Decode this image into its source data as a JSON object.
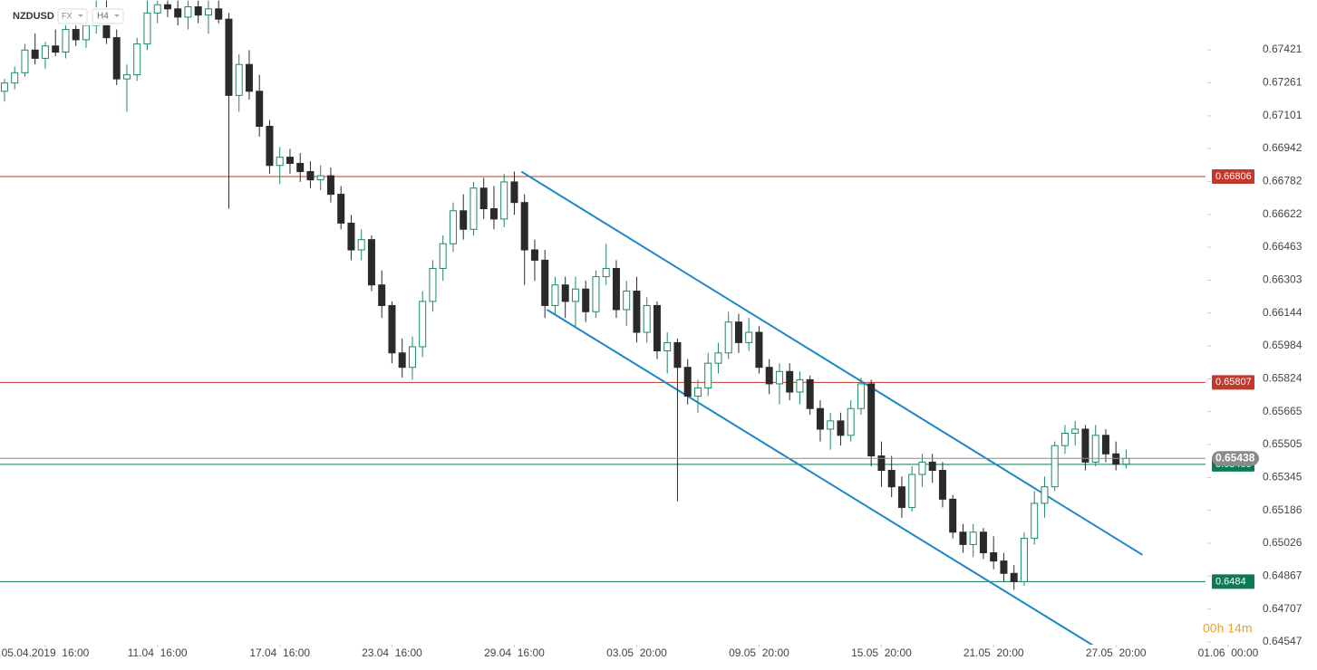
{
  "header": {
    "symbol": "NZDUSD",
    "market": "FX",
    "interval": "H4"
  },
  "countdown": "00h 14m",
  "chart_data": {
    "type": "candlestick",
    "up_color": "#1f8a5c",
    "down_color": "#2a2a2a",
    "xlim": [
      -0.44,
      122.85
    ],
    "xticks": [
      {
        "value": 4,
        "label": "05.04.2019  16:00"
      },
      {
        "value": 15,
        "label": "11.04  16:00"
      },
      {
        "value": 27,
        "label": "17.04  16:00"
      },
      {
        "value": 38,
        "label": "23.04  16:00"
      },
      {
        "value": 50,
        "label": "29.04  16:00"
      },
      {
        "value": 62,
        "label": "03.05  20:00"
      },
      {
        "value": 74,
        "label": "09.05  20:00"
      },
      {
        "value": 86,
        "label": "15.05  20:00"
      },
      {
        "value": 97,
        "label": "21.05  20:00"
      },
      {
        "value": 109,
        "label": "27.05  20:00"
      },
      {
        "value": 120,
        "label": "01.06  00:00"
      }
    ],
    "ylim": [
      0.64534,
      0.67663
    ],
    "yticks": [
      0.67421,
      0.67261,
      0.67101,
      0.66942,
      0.66782,
      0.66622,
      0.66463,
      0.66303,
      0.66144,
      0.65984,
      0.65824,
      0.65665,
      0.65505,
      0.65345,
      0.65186,
      0.65026,
      0.64867,
      0.64707,
      0.64547
    ],
    "levels": [
      {
        "value": 0.66806,
        "color": "#c0392b"
      },
      {
        "value": 0.65807,
        "color": "#c0392b"
      },
      {
        "value": 0.65409,
        "color": "#0e7a55"
      },
      {
        "value": 0.6484,
        "color": "#0e7a55"
      }
    ],
    "last_price": {
      "value": 0.65438,
      "color": "#8a8a8a"
    },
    "trendlines": [
      {
        "x": [
          50.7,
          111.6
        ],
        "y": [
          0.6683,
          0.6497
        ],
        "color": "#1a87c9"
      },
      {
        "x": [
          53.2,
          107.1
        ],
        "y": [
          0.6616,
          0.6452
        ],
        "color": "#1a87c9"
      }
    ],
    "candles": [
      [
        0.6722,
        0.6728,
        0.6717,
        0.6726
      ],
      [
        0.6726,
        0.6734,
        0.6723,
        0.6731
      ],
      [
        0.6731,
        0.6745,
        0.6729,
        0.6742
      ],
      [
        0.6742,
        0.675,
        0.6735,
        0.6738
      ],
      [
        0.6738,
        0.6746,
        0.6733,
        0.6744
      ],
      [
        0.6744,
        0.6752,
        0.6739,
        0.6741
      ],
      [
        0.6741,
        0.6755,
        0.6738,
        0.6752
      ],
      [
        0.6752,
        0.6758,
        0.6744,
        0.6747
      ],
      [
        0.6747,
        0.6756,
        0.6743,
        0.6754
      ],
      [
        0.6754,
        0.6766,
        0.675,
        0.6762
      ],
      [
        0.6762,
        0.6766,
        0.6745,
        0.6748
      ],
      [
        0.6748,
        0.6752,
        0.6725,
        0.6728
      ],
      [
        0.6728,
        0.6735,
        0.6712,
        0.673
      ],
      [
        0.673,
        0.6748,
        0.6727,
        0.6745
      ],
      [
        0.6745,
        0.6766,
        0.6742,
        0.676
      ],
      [
        0.676,
        0.6766,
        0.6755,
        0.6764
      ],
      [
        0.6764,
        0.6766,
        0.6758,
        0.6762
      ],
      [
        0.6762,
        0.6766,
        0.6754,
        0.6758
      ],
      [
        0.6758,
        0.6766,
        0.6752,
        0.6763
      ],
      [
        0.6763,
        0.6766,
        0.6755,
        0.6759
      ],
      [
        0.6759,
        0.6766,
        0.675,
        0.6762
      ],
      [
        0.6762,
        0.6766,
        0.6755,
        0.6757
      ],
      [
        0.6757,
        0.676,
        0.6665,
        0.672
      ],
      [
        0.672,
        0.674,
        0.6712,
        0.6735
      ],
      [
        0.6735,
        0.6742,
        0.6718,
        0.6722
      ],
      [
        0.6722,
        0.673,
        0.67,
        0.6705
      ],
      [
        0.6705,
        0.6708,
        0.6682,
        0.6686
      ],
      [
        0.6686,
        0.6695,
        0.6677,
        0.669
      ],
      [
        0.669,
        0.6694,
        0.6682,
        0.6687
      ],
      [
        0.6687,
        0.6692,
        0.6678,
        0.6683
      ],
      [
        0.6683,
        0.6688,
        0.6675,
        0.6679
      ],
      [
        0.6679,
        0.6686,
        0.6674,
        0.6681
      ],
      [
        0.6681,
        0.6685,
        0.6668,
        0.6672
      ],
      [
        0.6672,
        0.6676,
        0.6655,
        0.6658
      ],
      [
        0.6658,
        0.6662,
        0.664,
        0.6645
      ],
      [
        0.6645,
        0.6655,
        0.664,
        0.665
      ],
      [
        0.665,
        0.6652,
        0.6625,
        0.6628
      ],
      [
        0.6628,
        0.6635,
        0.6612,
        0.6618
      ],
      [
        0.6618,
        0.662,
        0.659,
        0.6595
      ],
      [
        0.6595,
        0.6602,
        0.6583,
        0.6588
      ],
      [
        0.6588,
        0.6603,
        0.6582,
        0.6598
      ],
      [
        0.6598,
        0.6625,
        0.6593,
        0.662
      ],
      [
        0.662,
        0.664,
        0.6615,
        0.6636
      ],
      [
        0.6636,
        0.6652,
        0.663,
        0.6648
      ],
      [
        0.6648,
        0.6668,
        0.6644,
        0.6664
      ],
      [
        0.6664,
        0.6672,
        0.665,
        0.6655
      ],
      [
        0.6655,
        0.6678,
        0.6652,
        0.6675
      ],
      [
        0.6675,
        0.668,
        0.666,
        0.6665
      ],
      [
        0.6665,
        0.6676,
        0.6655,
        0.666
      ],
      [
        0.666,
        0.6682,
        0.6656,
        0.6678
      ],
      [
        0.6678,
        0.6683,
        0.6662,
        0.6668
      ],
      [
        0.6668,
        0.6672,
        0.6628,
        0.6645
      ],
      [
        0.6645,
        0.665,
        0.663,
        0.664
      ],
      [
        0.664,
        0.6645,
        0.6612,
        0.6618
      ],
      [
        0.6618,
        0.6632,
        0.6614,
        0.6628
      ],
      [
        0.6628,
        0.6632,
        0.6612,
        0.662
      ],
      [
        0.662,
        0.6632,
        0.6608,
        0.6626
      ],
      [
        0.6626,
        0.663,
        0.661,
        0.6615
      ],
      [
        0.6615,
        0.6635,
        0.6612,
        0.6632
      ],
      [
        0.6632,
        0.6648,
        0.6628,
        0.6636
      ],
      [
        0.6636,
        0.664,
        0.6612,
        0.6616
      ],
      [
        0.6616,
        0.663,
        0.6608,
        0.6625
      ],
      [
        0.6625,
        0.6632,
        0.66,
        0.6605
      ],
      [
        0.6605,
        0.6622,
        0.66,
        0.6618
      ],
      [
        0.6618,
        0.662,
        0.6592,
        0.6596
      ],
      [
        0.6596,
        0.6605,
        0.6585,
        0.66
      ],
      [
        0.66,
        0.6602,
        0.6523,
        0.6588
      ],
      [
        0.6588,
        0.6592,
        0.657,
        0.6574
      ],
      [
        0.6574,
        0.6582,
        0.6566,
        0.6578
      ],
      [
        0.6578,
        0.6595,
        0.6574,
        0.659
      ],
      [
        0.659,
        0.66,
        0.6585,
        0.6595
      ],
      [
        0.6595,
        0.6615,
        0.6592,
        0.661
      ],
      [
        0.661,
        0.6614,
        0.6595,
        0.66
      ],
      [
        0.66,
        0.6612,
        0.6596,
        0.6605
      ],
      [
        0.6605,
        0.6608,
        0.6585,
        0.6588
      ],
      [
        0.6588,
        0.6592,
        0.6575,
        0.658
      ],
      [
        0.658,
        0.659,
        0.657,
        0.6586
      ],
      [
        0.6586,
        0.659,
        0.6572,
        0.6576
      ],
      [
        0.6576,
        0.6586,
        0.657,
        0.6582
      ],
      [
        0.6582,
        0.6584,
        0.6565,
        0.6568
      ],
      [
        0.6568,
        0.6572,
        0.6552,
        0.6558
      ],
      [
        0.6558,
        0.6566,
        0.6548,
        0.6562
      ],
      [
        0.6562,
        0.6566,
        0.655,
        0.6555
      ],
      [
        0.6555,
        0.6572,
        0.6552,
        0.6568
      ],
      [
        0.6568,
        0.6583,
        0.6565,
        0.658
      ],
      [
        0.658,
        0.6582,
        0.654,
        0.6545
      ],
      [
        0.6545,
        0.6552,
        0.653,
        0.6538
      ],
      [
        0.6538,
        0.6545,
        0.6525,
        0.653
      ],
      [
        0.653,
        0.6535,
        0.6515,
        0.652
      ],
      [
        0.652,
        0.654,
        0.6518,
        0.6536
      ],
      [
        0.6536,
        0.6546,
        0.653,
        0.6542
      ],
      [
        0.6542,
        0.6546,
        0.6532,
        0.6538
      ],
      [
        0.6538,
        0.6542,
        0.652,
        0.6524
      ],
      [
        0.6524,
        0.6526,
        0.6505,
        0.6508
      ],
      [
        0.6508,
        0.6512,
        0.6498,
        0.6502
      ],
      [
        0.6502,
        0.6512,
        0.6496,
        0.6508
      ],
      [
        0.6508,
        0.651,
        0.6495,
        0.6498
      ],
      [
        0.6498,
        0.6506,
        0.649,
        0.6494
      ],
      [
        0.6494,
        0.6498,
        0.6484,
        0.6488
      ],
      [
        0.6488,
        0.6492,
        0.648,
        0.6484
      ],
      [
        0.6484,
        0.6508,
        0.6482,
        0.6505
      ],
      [
        0.6505,
        0.6528,
        0.6502,
        0.6522
      ],
      [
        0.6522,
        0.6535,
        0.6515,
        0.653
      ],
      [
        0.653,
        0.6552,
        0.6528,
        0.655
      ],
      [
        0.655,
        0.656,
        0.6546,
        0.6556
      ],
      [
        0.6556,
        0.6562,
        0.655,
        0.6558
      ],
      [
        0.6558,
        0.656,
        0.6538,
        0.6542
      ],
      [
        0.6542,
        0.656,
        0.654,
        0.6555
      ],
      [
        0.6555,
        0.6558,
        0.6542,
        0.6546
      ],
      [
        0.6546,
        0.6552,
        0.6538,
        0.6541
      ],
      [
        0.6541,
        0.6548,
        0.6539,
        0.65438
      ]
    ]
  }
}
